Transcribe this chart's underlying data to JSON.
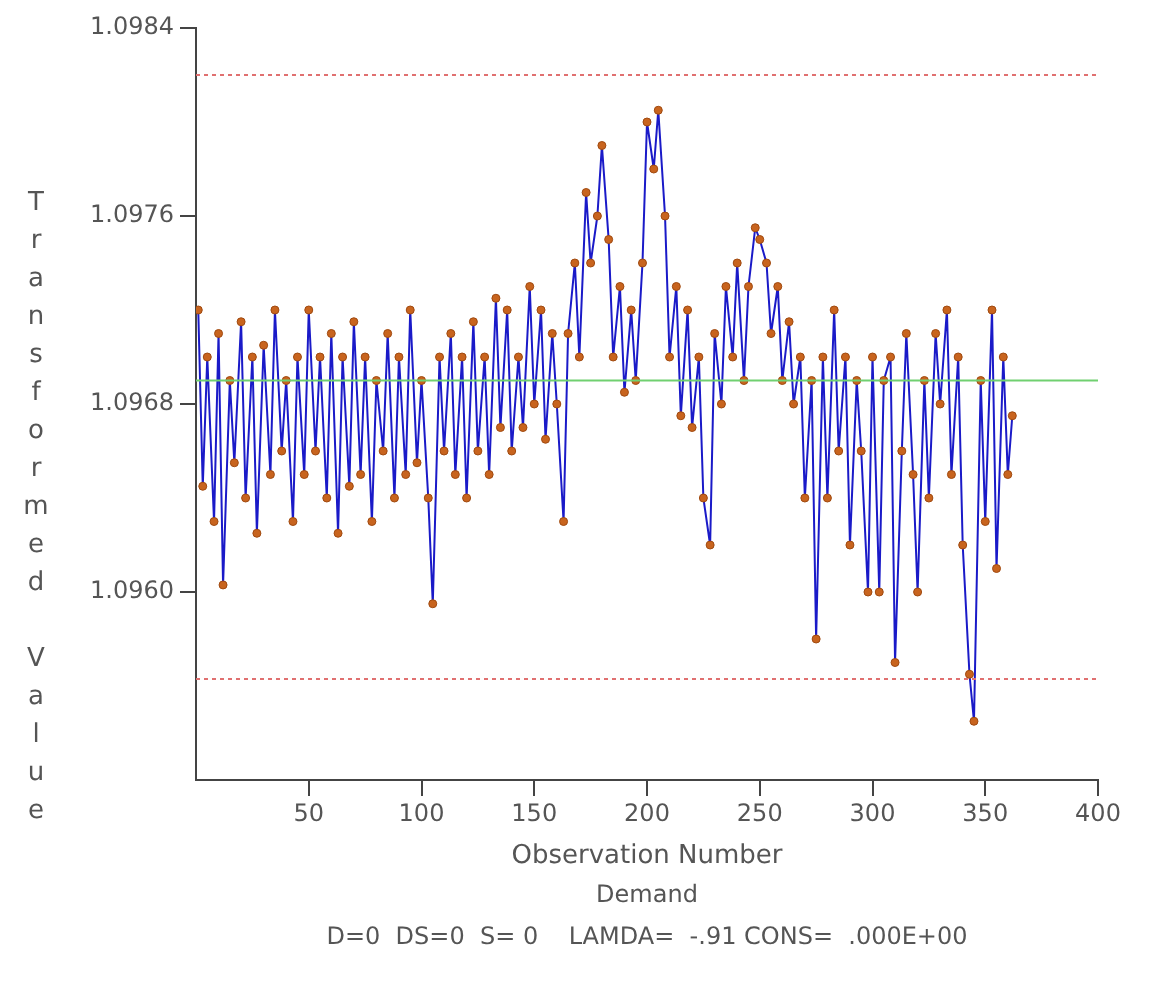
{
  "chart_data": {
    "type": "line",
    "xlabel": "Observation Number",
    "ylabel": "Transformed Value",
    "annotations": [
      "Demand",
      "D=0  DS=0  S= 0    LAMDA=  -.91 CONS=  .000E+00"
    ],
    "xlim": [
      0,
      400
    ],
    "xticks": [
      50,
      100,
      150,
      200,
      250,
      300,
      350,
      400
    ],
    "ylim": [
      1.0952,
      1.0984
    ],
    "yticks": [
      {
        "value": 1.096,
        "label": "1.0960"
      },
      {
        "value": 1.0968,
        "label": "1.0968"
      },
      {
        "value": 1.0976,
        "label": "1.0976"
      },
      {
        "value": 1.0984,
        "label": "1.0984"
      }
    ],
    "grid": false,
    "legend": false,
    "marker": "circle",
    "line_style": "solid",
    "ref_lines": [
      {
        "axis": "y",
        "value": 1.0982,
        "color": "#e07070",
        "line_style": "dotted"
      },
      {
        "axis": "y",
        "value": 1.0969,
        "color": "#70d070",
        "line_style": "solid"
      },
      {
        "axis": "y",
        "value": 1.09563,
        "color": "#e07070",
        "line_style": "dotted"
      }
    ],
    "series": [
      {
        "color": "#1a1ac8",
        "x": [
          1,
          3,
          5,
          8,
          10,
          12,
          15,
          17,
          20,
          22,
          25,
          27,
          30,
          33,
          35,
          38,
          40,
          43,
          45,
          48,
          50,
          53,
          55,
          58,
          60,
          63,
          65,
          68,
          70,
          73,
          75,
          78,
          80,
          83,
          85,
          88,
          90,
          93,
          95,
          98,
          100,
          103,
          105,
          108,
          110,
          113,
          115,
          118,
          120,
          123,
          125,
          128,
          130,
          133,
          135,
          138,
          140,
          143,
          145,
          148,
          150,
          153,
          155,
          158,
          160,
          163,
          165,
          168,
          170,
          173,
          175,
          178,
          180,
          183,
          185,
          188,
          190,
          193,
          195,
          198,
          200,
          203,
          205,
          208,
          210,
          213,
          215,
          218,
          220,
          223,
          225,
          228,
          230,
          233,
          235,
          238,
          240,
          243,
          245,
          248,
          250,
          253,
          255,
          258,
          260,
          263,
          265,
          268,
          270,
          273,
          275,
          278,
          280,
          283,
          285,
          288,
          290,
          293,
          295,
          298,
          300,
          303,
          305,
          308,
          310,
          313,
          315,
          318,
          320,
          323,
          325,
          328,
          330,
          333,
          335,
          338,
          340,
          343,
          345,
          348,
          350,
          353,
          355,
          358,
          360,
          362
        ],
        "values": [
          1.0972,
          1.09645,
          1.097,
          1.0963,
          1.0971,
          1.09603,
          1.0969,
          1.09655,
          1.09715,
          1.0964,
          1.097,
          1.09625,
          1.09705,
          1.0965,
          1.0972,
          1.0966,
          1.0969,
          1.0963,
          1.097,
          1.0965,
          1.0972,
          1.0966,
          1.097,
          1.0964,
          1.0971,
          1.09625,
          1.097,
          1.09645,
          1.09715,
          1.0965,
          1.097,
          1.0963,
          1.0969,
          1.0966,
          1.0971,
          1.0964,
          1.097,
          1.0965,
          1.0972,
          1.09655,
          1.0969,
          1.0964,
          1.09595,
          1.097,
          1.0966,
          1.0971,
          1.0965,
          1.097,
          1.0964,
          1.09715,
          1.0966,
          1.097,
          1.0965,
          1.09725,
          1.0967,
          1.0972,
          1.0966,
          1.097,
          1.0967,
          1.0973,
          1.0968,
          1.0972,
          1.09665,
          1.0971,
          1.0968,
          1.0963,
          1.0971,
          1.0974,
          1.097,
          1.0977,
          1.0974,
          1.0976,
          1.0979,
          1.0975,
          1.097,
          1.0973,
          1.09685,
          1.0972,
          1.0969,
          1.0974,
          1.098,
          1.0978,
          1.09805,
          1.0976,
          1.097,
          1.0973,
          1.09675,
          1.0972,
          1.0967,
          1.097,
          1.0964,
          1.0962,
          1.0971,
          1.0968,
          1.0973,
          1.097,
          1.0974,
          1.0969,
          1.0973,
          1.09755,
          1.0975,
          1.0974,
          1.0971,
          1.0973,
          1.0969,
          1.09715,
          1.0968,
          1.097,
          1.0964,
          1.0969,
          1.0958,
          1.097,
          1.0964,
          1.0972,
          1.0966,
          1.097,
          1.0962,
          1.0969,
          1.0966,
          1.096,
          1.097,
          1.096,
          1.0969,
          1.097,
          1.0957,
          1.0966,
          1.0971,
          1.0965,
          1.096,
          1.0969,
          1.0964,
          1.0971,
          1.0968,
          1.0972,
          1.0965,
          1.097,
          1.0962,
          1.09565,
          1.09545,
          1.0969,
          1.0963,
          1.0972,
          1.0961,
          1.097,
          1.0965,
          1.09675
        ]
      }
    ]
  }
}
